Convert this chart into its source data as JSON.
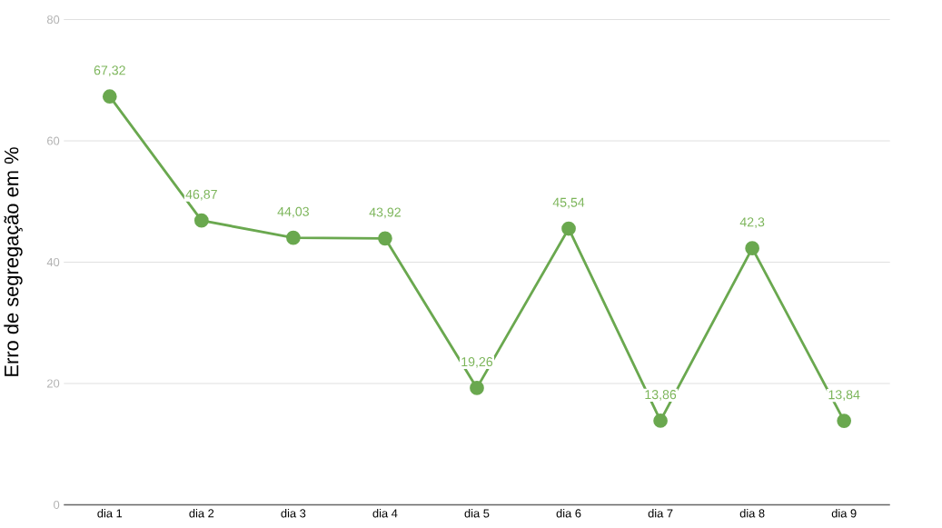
{
  "chart_data": {
    "type": "line",
    "ylabel": "Erro de segregação em %",
    "categories": [
      "dia 1",
      "dia 2",
      "dia 3",
      "dia 4",
      "dia 5",
      "dia 6",
      "dia 7",
      "dia 8",
      "dia 9"
    ],
    "values": [
      67.32,
      46.87,
      44.03,
      43.92,
      19.26,
      45.54,
      13.86,
      42.3,
      13.84
    ],
    "value_labels": [
      "67,32",
      "46,87",
      "44,03",
      "43,92",
      "19,26",
      "45,54",
      "13,86",
      "42,3",
      "13,84"
    ],
    "color": "#6aa84f",
    "marker": "circle",
    "line_style": "solid",
    "ylim": [
      0,
      80
    ],
    "yticks": [
      0,
      20,
      40,
      60,
      80
    ],
    "grid": "y"
  }
}
